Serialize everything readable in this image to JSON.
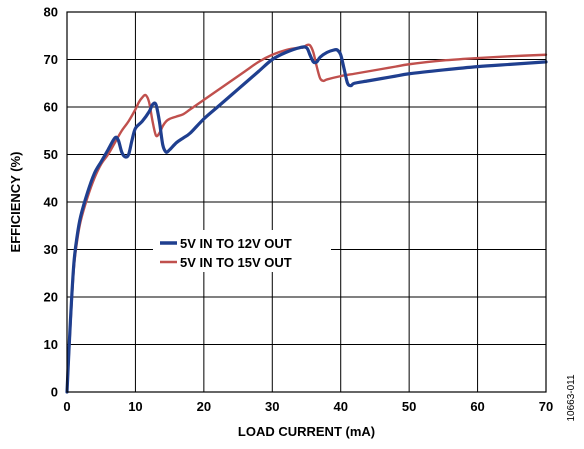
{
  "chart_data": {
    "type": "line",
    "title": "",
    "xlabel": "LOAD CURRENT (mA)",
    "ylabel": "EFFICIENCY (%)",
    "xlim": [
      0,
      70
    ],
    "ylim": [
      0,
      80
    ],
    "x_ticks": [
      0,
      10,
      20,
      30,
      40,
      50,
      60,
      70
    ],
    "y_ticks": [
      0,
      10,
      20,
      30,
      40,
      50,
      60,
      70,
      80
    ],
    "grid": true,
    "legend_position": "center-left",
    "series": [
      {
        "name": "5V IN TO 12V OUT",
        "color": "#1f3f8f",
        "x": [
          0,
          0.5,
          1,
          1.5,
          2,
          3,
          4,
          5,
          6,
          7,
          7.5,
          8,
          8.5,
          9,
          9.5,
          10,
          11,
          12,
          12.5,
          13,
          13.5,
          14,
          14.5,
          15,
          16,
          17,
          18,
          20,
          22,
          24,
          26,
          28,
          30,
          32,
          34,
          35,
          35.5,
          36,
          36.5,
          37,
          38,
          39,
          39.5,
          40,
          40.5,
          41,
          41.5,
          42,
          44,
          46,
          48,
          50,
          55,
          60,
          65,
          70
        ],
        "y": [
          0,
          15,
          27,
          33,
          37,
          42,
          46,
          48.5,
          51,
          53.5,
          53,
          50.5,
          49.5,
          50,
          53,
          55.5,
          57,
          59,
          60.5,
          60.5,
          57,
          52,
          50.5,
          51,
          52.5,
          53.5,
          54.5,
          57.5,
          60,
          62.5,
          65,
          67.5,
          70,
          71.5,
          72.5,
          72.5,
          71,
          69.5,
          69.5,
          70.5,
          71.5,
          72,
          72,
          71,
          68,
          65,
          64.5,
          65,
          65.5,
          66,
          66.5,
          67,
          67.8,
          68.5,
          69,
          69.5
        ]
      },
      {
        "name": "5V IN TO 15V OUT",
        "color": "#c0504d",
        "x": [
          0,
          0.5,
          1,
          1.5,
          2,
          3,
          4,
          5,
          6,
          7,
          8,
          9,
          10,
          10.5,
          11,
          11.5,
          12,
          12.5,
          13,
          13.5,
          14,
          14.5,
          15,
          16,
          17,
          18,
          20,
          22,
          24,
          26,
          28,
          30,
          32,
          34,
          34.5,
          35,
          35.5,
          36,
          36.5,
          37,
          37.5,
          38,
          40,
          42,
          44,
          46,
          48,
          50,
          55,
          60,
          65,
          70
        ],
        "y": [
          0,
          14,
          26,
          32,
          36,
          41,
          45,
          48,
          50,
          52.5,
          55,
          57,
          59.5,
          61,
          62,
          62.5,
          61,
          57,
          54,
          54.5,
          56,
          57,
          57.5,
          58,
          58.5,
          59.5,
          61.5,
          63.5,
          65.5,
          67.5,
          69.5,
          71,
          72,
          72.5,
          72.5,
          73,
          73,
          71.5,
          68.5,
          66,
          65.5,
          65.8,
          66.5,
          67,
          67.5,
          68,
          68.5,
          69,
          69.8,
          70.3,
          70.7,
          71
        ]
      }
    ]
  },
  "figure_id": "10663-011"
}
